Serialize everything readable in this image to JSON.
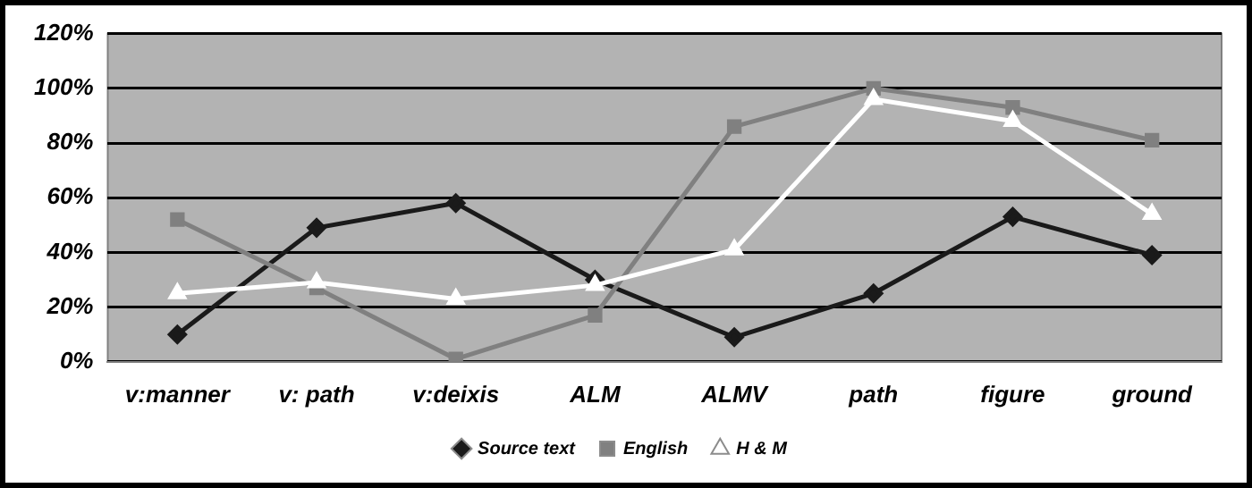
{
  "chart_data": {
    "type": "line",
    "categories": [
      "v:manner",
      "v: path",
      "v:deixis",
      "ALM",
      "ALMV",
      "path",
      "figure",
      "ground"
    ],
    "series": [
      {
        "name": "Source text",
        "color": "#1a1a1a",
        "marker": "diamond",
        "values": [
          10,
          49,
          58,
          30,
          9,
          25,
          53,
          39
        ]
      },
      {
        "name": "English",
        "color": "#808080",
        "marker": "square",
        "values": [
          52,
          27,
          1,
          17,
          86,
          100,
          93,
          81
        ]
      },
      {
        "name": "H & M",
        "color": "#ffffff",
        "marker": "triangle",
        "values": [
          25,
          29,
          23,
          28,
          41,
          96,
          88,
          54
        ]
      }
    ],
    "ylim": [
      0,
      120
    ],
    "yticks": [
      {
        "value": 0,
        "label": "0%"
      },
      {
        "value": 20,
        "label": "20%"
      },
      {
        "value": 40,
        "label": "40%"
      },
      {
        "value": 60,
        "label": "60%"
      },
      {
        "value": 80,
        "label": "80%"
      },
      {
        "value": 100,
        "label": "100%"
      },
      {
        "value": 120,
        "label": "120%"
      }
    ],
    "grid": "y",
    "legend": "bottom",
    "line_style": "solid"
  }
}
